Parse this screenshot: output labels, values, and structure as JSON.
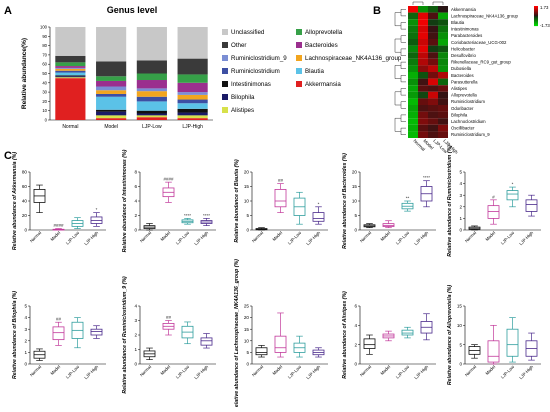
{
  "figure": {
    "panels": {
      "a_letter": "A",
      "b_letter": "B",
      "c_letter": "C"
    }
  },
  "chart_data": [
    {
      "type": "bar",
      "panel": "A",
      "title": "Genus level",
      "ylabel": "Relative abundance(%)",
      "ylim": [
        0,
        100
      ],
      "yticks": [
        "0",
        "10",
        "20",
        "30",
        "40",
        "50",
        "60",
        "70",
        "80",
        "90",
        "100"
      ],
      "categories": [
        "Normal",
        "Model",
        "LJP-Low",
        "LJP-High"
      ],
      "series": [
        {
          "name": "Akkermansia",
          "color": "#e02020",
          "values": [
            45,
            2,
            3,
            2
          ]
        },
        {
          "name": "Alistipes",
          "color": "#d7e14a",
          "values": [
            1,
            3,
            2,
            3
          ]
        },
        {
          "name": "Bilophila",
          "color": "#1a1a66",
          "values": [
            1,
            4,
            2,
            3
          ]
        },
        {
          "name": "Intestinimonas",
          "color": "#111111",
          "values": [
            1,
            2,
            3,
            4
          ]
        },
        {
          "name": "Blautia",
          "color": "#5bc2e7",
          "values": [
            3,
            14,
            10,
            6
          ]
        },
        {
          "name": "Ruminiclostridium",
          "color": "#3d4fa3",
          "values": [
            2,
            3,
            5,
            4
          ]
        },
        {
          "name": "Lachnospiraceae_NK4A136_group",
          "color": "#f2a51f",
          "values": [
            2,
            4,
            6,
            5
          ]
        },
        {
          "name": "Ruminiclostridium_9",
          "color": "#7b8ed4",
          "values": [
            1,
            4,
            3,
            3
          ]
        },
        {
          "name": "Bacteroides",
          "color": "#9b2f8e",
          "values": [
            2,
            6,
            9,
            10
          ]
        },
        {
          "name": "Alloprevotella",
          "color": "#36a048",
          "values": [
            4,
            5,
            7,
            9
          ]
        },
        {
          "name": "Other",
          "color": "#3a3a3a",
          "values": [
            7,
            16,
            14,
            17
          ]
        },
        {
          "name": "Unclassified",
          "color": "#c8c8c8",
          "values": [
            31,
            37,
            36,
            34
          ]
        }
      ],
      "legend": {
        "left": [
          "Unclassified",
          "Other",
          "Ruminiclostridium_9",
          "Ruminiclostridium",
          "Intestinimonas",
          "Bilophila",
          "Alistipes"
        ],
        "right": [
          "Alloprevotella",
          "Bacteroides",
          "Lachnospiraceae_NK4A136_group",
          "Blautia",
          "Akkermansia"
        ]
      }
    },
    {
      "type": "heatmap",
      "panel": "B",
      "rows": [
        "Akkermansia",
        "Lachnospiraceae_NK4A136_group",
        "Blautia",
        "Intestinimonas",
        "Parabacteroides",
        "Coriobacteriaceae_UCG-002",
        "Helicobacter",
        "Desulfovibrio",
        "Rikenellaceae_RC9_gut_group",
        "Dubosiella",
        "Bacteroides",
        "Parasutterella",
        "Alistipes",
        "Alloprevotella",
        "Ruminiclostridium",
        "Odoribacter",
        "Bilophila",
        "Lachnoclostridium",
        "Oscillibacter",
        "Ruminiclostridium_9"
      ],
      "columns": [
        "Normal",
        "Model",
        "LJP-Low",
        "LJP-High"
      ],
      "scale_labels": [
        "1.73",
        "-1.73"
      ],
      "values": [
        [
          1.6,
          -1.0,
          -0.5,
          0.0
        ],
        [
          -0.6,
          1.5,
          0.3,
          -1.2
        ],
        [
          -1.0,
          1.6,
          -0.2,
          -0.4
        ],
        [
          -0.8,
          1.4,
          0.1,
          -0.7
        ],
        [
          -0.7,
          1.5,
          0.2,
          -1.0
        ],
        [
          -0.5,
          1.3,
          0.4,
          -1.2
        ],
        [
          -0.9,
          1.5,
          -0.2,
          -0.4
        ],
        [
          -0.6,
          1.2,
          0.3,
          -0.9
        ],
        [
          -0.8,
          1.1,
          0.6,
          -0.9
        ],
        [
          -1.0,
          0.8,
          1.2,
          -1.0
        ],
        [
          -1.3,
          -0.4,
          0.6,
          1.1
        ],
        [
          -1.0,
          0.2,
          1.4,
          -0.6
        ],
        [
          -1.2,
          0.4,
          0.3,
          0.5
        ],
        [
          -1.1,
          -0.3,
          1.3,
          0.1
        ],
        [
          -1.4,
          0.5,
          0.7,
          0.2
        ],
        [
          -1.2,
          0.3,
          0.4,
          0.5
        ],
        [
          -1.3,
          0.6,
          0.3,
          0.4
        ],
        [
          -1.4,
          0.7,
          0.5,
          0.2
        ],
        [
          -1.3,
          0.4,
          0.2,
          0.7
        ],
        [
          -1.4,
          0.6,
          0.3,
          0.5
        ]
      ]
    },
    {
      "type": "box",
      "panel": "C",
      "categories": [
        "Normal",
        "Model",
        "LJP-Low",
        "LJP-High"
      ],
      "colors": [
        "#111111",
        "#c2399b",
        "#2f9e9e",
        "#4b2a8c"
      ],
      "plots": [
        {
          "ylabel": "Relative abundance of Akkermansia (%)",
          "ylim": [
            0,
            80
          ],
          "yticks": [
            "0",
            "20",
            "40",
            "60",
            "80"
          ],
          "boxes": [
            [
              24,
              38,
              47,
              56,
              62
            ],
            [
              0,
              0.2,
              0.5,
              1,
              2
            ],
            [
              2,
              5,
              9,
              13,
              17
            ],
            [
              5,
              9,
              13,
              18,
              24
            ]
          ],
          "marks": [
            "",
            "####",
            "",
            "*"
          ]
        },
        {
          "ylabel": "Relative abundance of Intestinimonas (%)",
          "ylim": [
            0,
            8
          ],
          "yticks": [
            "0",
            "2",
            "4",
            "6",
            "8"
          ],
          "boxes": [
            [
              0,
              0.2,
              0.4,
              0.6,
              0.9
            ],
            [
              3.8,
              4.6,
              5.2,
              5.8,
              6.6
            ],
            [
              0.8,
              1,
              1.2,
              1.4,
              1.6
            ],
            [
              0.6,
              0.9,
              1.1,
              1.3,
              1.6
            ]
          ],
          "marks": [
            "",
            "####",
            "****",
            "****"
          ]
        },
        {
          "ylabel": "Relative abundance of Blautia (%)",
          "ylim": [
            0,
            20
          ],
          "yticks": [
            "0",
            "5",
            "10",
            "15",
            "20"
          ],
          "boxes": [
            [
              0,
              0.1,
              0.3,
              0.5,
              0.8
            ],
            [
              6,
              8,
              10,
              14,
              16
            ],
            [
              2,
              5,
              8,
              11,
              13
            ],
            [
              2,
              3,
              4,
              6,
              8
            ]
          ],
          "marks": [
            "",
            "##",
            "",
            "*"
          ]
        },
        {
          "ylabel": "Relative abundance of Bacteroides (%)",
          "ylim": [
            0,
            20
          ],
          "yticks": [
            "0",
            "5",
            "10",
            "15",
            "20"
          ],
          "boxes": [
            [
              0.8,
              1.1,
              1.4,
              1.8,
              2.2
            ],
            [
              0.8,
              1.2,
              1.6,
              2.2,
              3.2
            ],
            [
              6.5,
              7.3,
              8.2,
              9.2,
              10
            ],
            [
              8,
              10,
              12.5,
              15,
              17
            ]
          ],
          "marks": [
            "",
            "",
            "**",
            "****"
          ]
        },
        {
          "ylabel": "Relative abundance of Ruminiclostridium (%)",
          "ylim": [
            0,
            5
          ],
          "yticks": [
            "0",
            "1",
            "2",
            "3",
            "4",
            "5"
          ],
          "boxes": [
            [
              0,
              0.05,
              0.15,
              0.25,
              0.35
            ],
            [
              0.5,
              1,
              1.6,
              2.1,
              2.6
            ],
            [
              2,
              2.6,
              3.1,
              3.4,
              3.7
            ],
            [
              1.2,
              1.6,
              2.2,
              2.6,
              3.0
            ]
          ],
          "marks": [
            "",
            "#",
            "*",
            ""
          ]
        },
        {
          "ylabel": "Relative abundance of Bilophila (%)",
          "ylim": [
            0,
            5
          ],
          "yticks": [
            "0",
            "1",
            "2",
            "3",
            "4",
            "5"
          ],
          "boxes": [
            [
              0.3,
              0.5,
              0.8,
              1.1,
              1.3
            ],
            [
              1.6,
              2.1,
              2.7,
              3.2,
              3.6
            ],
            [
              1.4,
              2.2,
              2.9,
              3.6,
              4.0
            ],
            [
              2.2,
              2.5,
              2.8,
              3.0,
              3.3
            ]
          ],
          "marks": [
            "",
            "##",
            "",
            ""
          ]
        },
        {
          "ylabel": "Relative abundance of Ruminiclostridium_9 (%)",
          "ylim": [
            0,
            4
          ],
          "yticks": [
            "0",
            "1",
            "2",
            "3",
            "4"
          ],
          "boxes": [
            [
              0.3,
              0.5,
              0.7,
              0.9,
              1.1
            ],
            [
              2.0,
              2.4,
              2.6,
              2.8,
              3.0
            ],
            [
              1.4,
              1.8,
              2.2,
              2.6,
              2.9
            ],
            [
              1.1,
              1.3,
              1.6,
              1.8,
              2.1
            ]
          ],
          "marks": [
            "",
            "##",
            "",
            ""
          ]
        },
        {
          "ylabel": "Relative abundance of Lachnospiraceae_NK4A136_group (%)",
          "ylim": [
            0,
            25
          ],
          "yticks": [
            "0",
            "5",
            "10",
            "15",
            "20",
            "25"
          ],
          "boxes": [
            [
              3,
              4,
              5,
              7,
              8
            ],
            [
              3,
              5,
              7,
              12,
              22
            ],
            [
              3,
              5,
              7,
              9,
              12
            ],
            [
              3,
              4,
              5,
              6,
              7
            ]
          ],
          "marks": [
            "",
            "",
            "",
            ""
          ]
        },
        {
          "ylabel": "Relative abundance of Alistipes (%)",
          "ylim": [
            0,
            6
          ],
          "yticks": [
            "0",
            "2",
            "4",
            "6"
          ],
          "boxes": [
            [
              1.0,
              1.6,
              2.0,
              2.6,
              3.0
            ],
            [
              2.4,
              2.7,
              2.9,
              3.1,
              3.4
            ],
            [
              2.7,
              3.0,
              3.2,
              3.5,
              3.8
            ],
            [
              2.5,
              3.2,
              3.8,
              4.4,
              5.2
            ]
          ],
          "marks": [
            "",
            "",
            "",
            ""
          ]
        },
        {
          "ylabel": "Relative abundance of Alloprevotella (%)",
          "ylim": [
            0,
            15
          ],
          "yticks": [
            "0",
            "5",
            "10",
            "15"
          ],
          "boxes": [
            [
              1.5,
              2.5,
              3.5,
              4.5,
              5
            ],
            [
              0,
              0.5,
              2,
              6,
              10
            ],
            [
              0.5,
              2,
              5,
              9,
              12
            ],
            [
              1,
              2,
              4,
              6,
              8
            ]
          ],
          "marks": [
            "",
            "",
            "",
            ""
          ]
        }
      ]
    }
  ]
}
